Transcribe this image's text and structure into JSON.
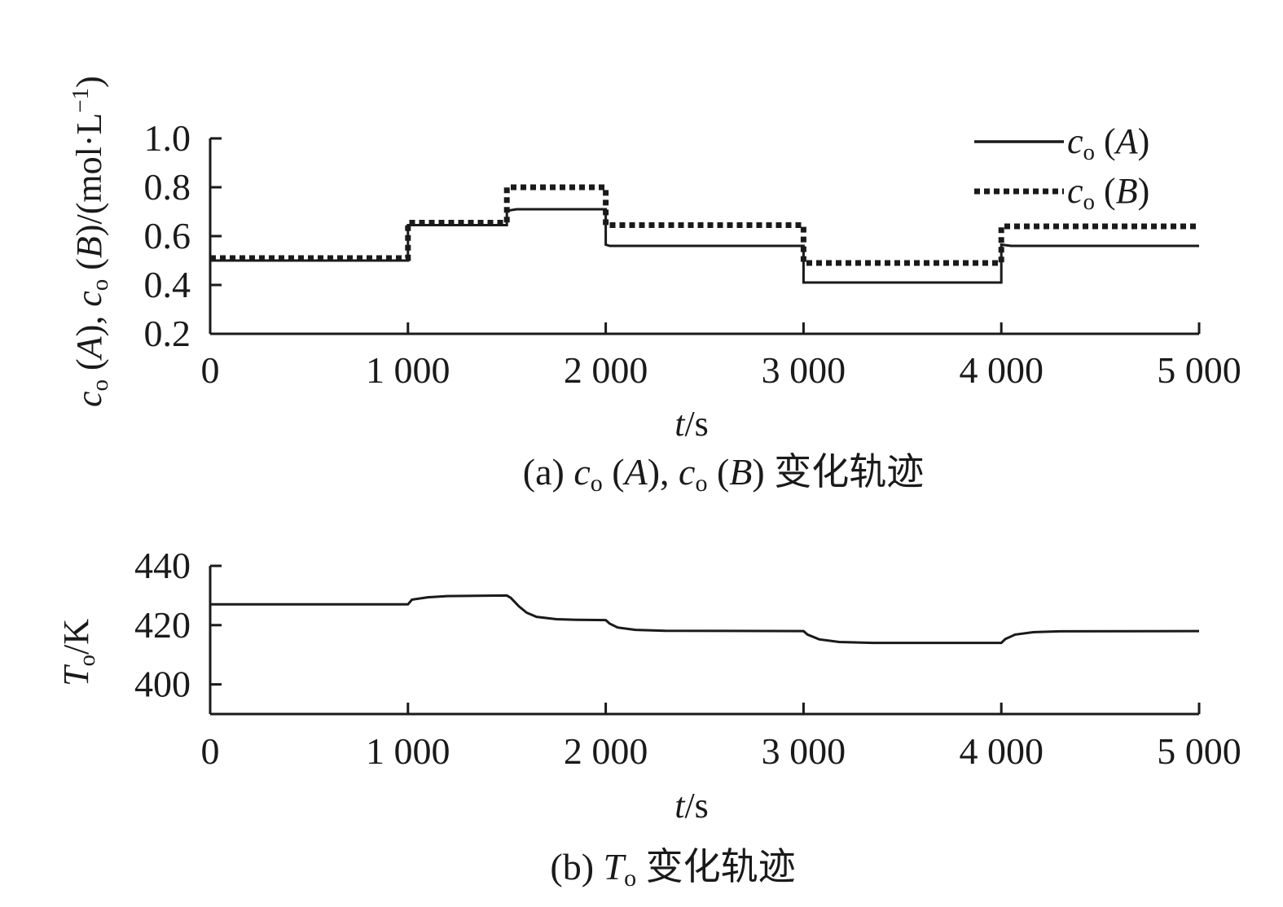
{
  "chart_data": [
    {
      "type": "line",
      "caption": "(a) c_o (A), c_o (B) 变化轨迹",
      "caption_parts": {
        "prefix": "(a) ",
        "c1": "c",
        "sub1": "o",
        "mid1": " (",
        "A": "A",
        "mid2": "), ",
        "c2": "c",
        "sub2": "o",
        "mid3": " (",
        "B": "B",
        "suffix": ") 变化轨迹"
      },
      "xlabel": "t/s",
      "xlabel_parts": {
        "var": "t",
        "unit": "/s"
      },
      "ylabel": "c_o (A), c_o (B)/(mol·L⁻¹)",
      "ylabel_parts": {
        "c1": "c",
        "sub1": "o",
        "mid1": " (",
        "A": "A",
        "mid2": "), ",
        "c2": "c",
        "sub2": "o",
        "mid3": " (",
        "B": "B",
        "mid4": ")/(mol·L",
        "sup": "−1",
        "end": ")"
      },
      "xlim": [
        0,
        5000
      ],
      "ylim": [
        0.2,
        1.0
      ],
      "xticks": [
        0,
        1000,
        2000,
        3000,
        4000,
        5000
      ],
      "xtick_labels": [
        "0",
        "1 000",
        "2 000",
        "3 000",
        "4 000",
        "5 000"
      ],
      "yticks": [
        0.2,
        0.4,
        0.6,
        0.8,
        1.0
      ],
      "ytick_labels": [
        "0.2",
        "0.4",
        "0.6",
        "0.8",
        "1.0"
      ],
      "legend_position": "top-right",
      "grid": false,
      "series": [
        {
          "name": "c_o (A)",
          "legend_parts": {
            "c": "c",
            "sub": "o",
            "open": " (",
            "var": "A",
            "close": ")"
          },
          "style": "solid",
          "color": "#1a1a1a",
          "points": [
            [
              0,
              0.5
            ],
            [
              1000,
              0.5
            ],
            [
              1000,
              0.645
            ],
            [
              1500,
              0.645
            ],
            [
              1500,
              0.7
            ],
            [
              1510,
              0.705
            ],
            [
              1550,
              0.71
            ],
            [
              2000,
              0.71
            ],
            [
              2000,
              0.565
            ],
            [
              2020,
              0.56
            ],
            [
              3000,
              0.56
            ],
            [
              3000,
              0.41
            ],
            [
              4000,
              0.41
            ],
            [
              4000,
              0.565
            ],
            [
              4050,
              0.56
            ],
            [
              5000,
              0.56
            ]
          ]
        },
        {
          "name": "c_o (B)",
          "legend_parts": {
            "c": "c",
            "sub": "o",
            "open": " (",
            "var": "B",
            "close": ")"
          },
          "style": "dotted",
          "color": "#1a1a1a",
          "points": [
            [
              0,
              0.51
            ],
            [
              1000,
              0.51
            ],
            [
              1000,
              0.655
            ],
            [
              1500,
              0.655
            ],
            [
              1500,
              0.8
            ],
            [
              2000,
              0.8
            ],
            [
              2000,
              0.645
            ],
            [
              3000,
              0.645
            ],
            [
              3000,
              0.49
            ],
            [
              4000,
              0.49
            ],
            [
              4000,
              0.64
            ],
            [
              5000,
              0.64
            ]
          ]
        }
      ]
    },
    {
      "type": "line",
      "caption": "(b) T_o 变化轨迹",
      "caption_parts": {
        "prefix": "(b) ",
        "T": "T",
        "sub": "o",
        "suffix": " 变化轨迹"
      },
      "xlabel": "t/s",
      "xlabel_parts": {
        "var": "t",
        "unit": "/s"
      },
      "ylabel": "T_o/K",
      "ylabel_parts": {
        "T": "T",
        "sub": "o",
        "unit": "/K"
      },
      "xlim": [
        0,
        5000
      ],
      "ylim": [
        390,
        440
      ],
      "xticks": [
        0,
        1000,
        2000,
        3000,
        4000,
        5000
      ],
      "xtick_labels": [
        "0",
        "1 000",
        "2 000",
        "3 000",
        "4 000",
        "5 000"
      ],
      "yticks": [
        400,
        420,
        440
      ],
      "ytick_labels": [
        "400",
        "420",
        "440"
      ],
      "grid": false,
      "series": [
        {
          "style": "solid",
          "color": "#1a1a1a",
          "points": [
            [
              0,
              427
            ],
            [
              1000,
              427
            ],
            [
              1020,
              428.6
            ],
            [
              1100,
              429.4
            ],
            [
              1200,
              429.8
            ],
            [
              1500,
              430
            ],
            [
              1520,
              429.2
            ],
            [
              1560,
              426.4
            ],
            [
              1600,
              424.2
            ],
            [
              1650,
              422.8
            ],
            [
              1750,
              422.0
            ],
            [
              1850,
              421.8
            ],
            [
              2000,
              421.7
            ],
            [
              2020,
              420.5
            ],
            [
              2060,
              419.2
            ],
            [
              2150,
              418.4
            ],
            [
              2300,
              418.1
            ],
            [
              3000,
              418
            ],
            [
              3020,
              416.8
            ],
            [
              3080,
              415.2
            ],
            [
              3180,
              414.3
            ],
            [
              3350,
              414.0
            ],
            [
              4000,
              414
            ],
            [
              4020,
              415.3
            ],
            [
              4070,
              416.8
            ],
            [
              4160,
              417.6
            ],
            [
              4300,
              417.9
            ],
            [
              5000,
              418
            ]
          ]
        }
      ]
    }
  ]
}
